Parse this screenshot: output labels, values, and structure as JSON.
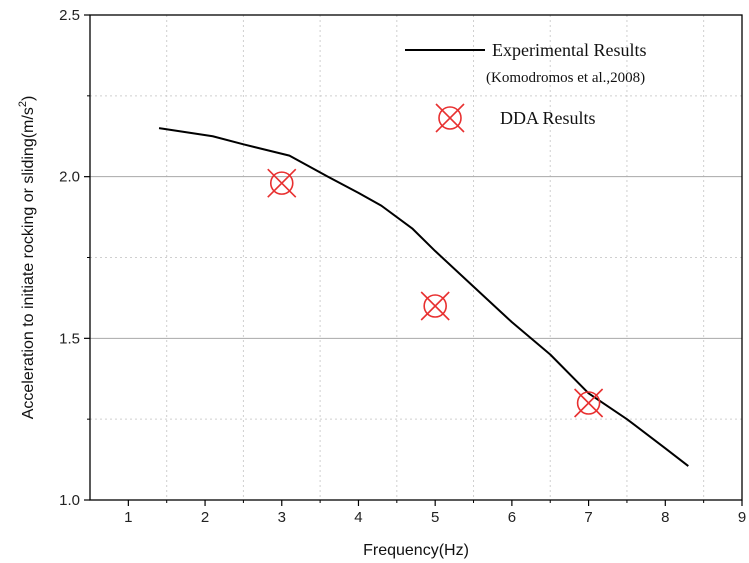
{
  "chart_data": {
    "type": "line",
    "xlabel": "Frequency(Hz)",
    "ylabel_main": "Acceleration to initiate rocking or sliding(m/s",
    "ylabel_sup": "2",
    "ylabel_end": ")",
    "xlim": [
      0.5,
      9
    ],
    "ylim": [
      1.0,
      2.5
    ],
    "xticks": [
      1,
      2,
      3,
      4,
      5,
      6,
      7,
      8,
      9
    ],
    "yticks": [
      1.0,
      1.5,
      2.0,
      2.5
    ],
    "ytick_labels": [
      "1.0",
      "1.5",
      "2.0",
      "2.5"
    ],
    "grid": "dotted minor grid, solid major horizontal lines",
    "legend_position": "top-right",
    "series": [
      {
        "name": "Experimental  Results",
        "name_sub": "(Komodromos et al.,2008)",
        "kind": "line",
        "color": "#000000",
        "x": [
          1.4,
          2.1,
          2.5,
          3.1,
          3.6,
          4.0,
          4.3,
          4.7,
          5.0,
          5.5,
          6.0,
          6.5,
          7.0,
          7.5,
          8.0,
          8.3
        ],
        "y": [
          2.15,
          2.125,
          2.1,
          2.065,
          2.0,
          1.95,
          1.91,
          1.84,
          1.77,
          1.66,
          1.55,
          1.45,
          1.33,
          1.25,
          1.16,
          1.105
        ]
      },
      {
        "name": "DDA Results",
        "kind": "marker",
        "color": "#e83030",
        "x": [
          3.0,
          5.0,
          7.0
        ],
        "y": [
          1.98,
          1.6,
          1.3
        ]
      }
    ]
  }
}
